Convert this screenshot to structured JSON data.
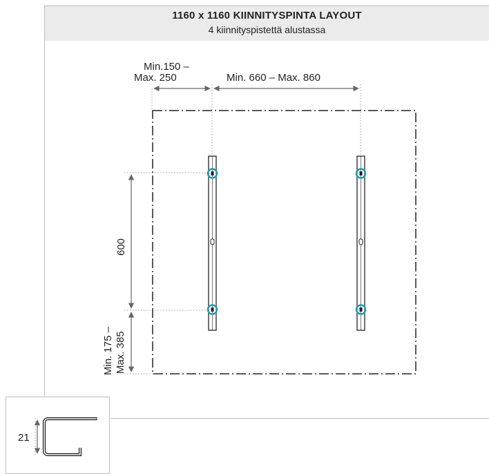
{
  "header": {
    "title": "1160 x 1160 KIINNITYSPINTA LAYOUT",
    "subtitle": "4 kiinnityspistettä alustassa"
  },
  "dimensions": {
    "left_offset_line1": "Min.150 –",
    "left_offset_line2": "Max. 250",
    "rail_spacing": "Min. 660 – Max. 860",
    "mount_spacing": "600",
    "bottom_offset_line1": "Min. 175 –",
    "bottom_offset_line2": "Max. 385",
    "profile_height": "21"
  },
  "colors": {
    "mount_point": "#2a9aa8",
    "dimension": "#666666",
    "outline": "#222222"
  }
}
